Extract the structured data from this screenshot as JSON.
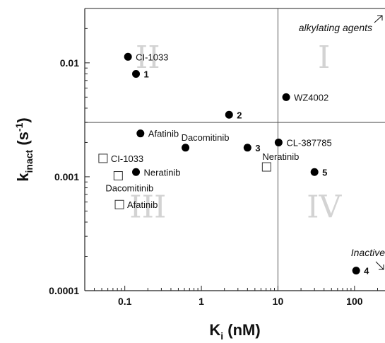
{
  "chart_data": {
    "type": "scatter",
    "xlabel": {
      "main": "K",
      "sub": "i",
      "rest": " (nM)"
    },
    "ylabel": {
      "main": "k",
      "sub": "inact",
      "rest": " (s",
      "sup": "-1",
      "close": ")"
    },
    "x_scale": "log",
    "y_scale": "log",
    "xlim": [
      0.03,
      250
    ],
    "ylim": [
      0.0001,
      0.03
    ],
    "x_ticks": [
      {
        "v": 0.1,
        "label": "0.1"
      },
      {
        "v": 1,
        "label": "1"
      },
      {
        "v": 10,
        "label": "10"
      },
      {
        "v": 100,
        "label": "100"
      }
    ],
    "y_ticks": [
      {
        "v": 0.0001,
        "label": "0.0001"
      },
      {
        "v": 0.001,
        "label": "0.001"
      },
      {
        "v": 0.01,
        "label": "0.01"
      }
    ],
    "divider_x": 10,
    "divider_y": 0.003,
    "quadrant_labels": [
      {
        "text": "I",
        "x": 40,
        "y": 0.009
      },
      {
        "text": "II",
        "x": 0.2,
        "y": 0.009
      },
      {
        "text": "III",
        "x": 0.2,
        "y": 0.00044
      },
      {
        "text": "IV",
        "x": 40,
        "y": 0.00044
      }
    ],
    "series": [
      {
        "marker": "filled-circle",
        "points": [
          {
            "x": 0.11,
            "y": 0.0113,
            "label": "CI-1033",
            "bold": false,
            "anchor": "right"
          },
          {
            "x": 0.14,
            "y": 0.008,
            "label": "1",
            "bold": true,
            "anchor": "right"
          },
          {
            "x": 12.8,
            "y": 0.005,
            "label": "WZ4002",
            "bold": false,
            "anchor": "right"
          },
          {
            "x": 2.3,
            "y": 0.0035,
            "label": "2",
            "bold": true,
            "anchor": "right"
          },
          {
            "x": 0.16,
            "y": 0.0024,
            "label": "Afatinib",
            "bold": false,
            "anchor": "right"
          },
          {
            "x": 0.62,
            "y": 0.0018,
            "label": "Dacomitinib",
            "bold": false,
            "anchor": "above-right"
          },
          {
            "x": 4.0,
            "y": 0.0018,
            "label": "3",
            "bold": true,
            "anchor": "right"
          },
          {
            "x": 10.2,
            "y": 0.002,
            "label": "CL-387785",
            "bold": false,
            "anchor": "right"
          },
          {
            "x": 0.14,
            "y": 0.0011,
            "label": "Neratinib",
            "bold": false,
            "anchor": "right"
          },
          {
            "x": 30,
            "y": 0.0011,
            "label": "5",
            "bold": true,
            "anchor": "right"
          },
          {
            "x": 105,
            "y": 0.00015,
            "label": "4",
            "bold": true,
            "anchor": "right"
          }
        ]
      },
      {
        "marker": "open-square",
        "points": [
          {
            "x": 0.052,
            "y": 0.00145,
            "label": "CI-1033",
            "anchor": "right"
          },
          {
            "x": 0.082,
            "y": 0.00102,
            "label": "Dacomitinib",
            "anchor": "below"
          },
          {
            "x": 0.085,
            "y": 0.00057,
            "label": "Afatinib",
            "anchor": "right"
          },
          {
            "x": 7.1,
            "y": 0.00122,
            "label": "Neratinib",
            "anchor": "above-right"
          }
        ]
      }
    ],
    "annotations": [
      {
        "text": "alkylating agents",
        "position": "top-right",
        "arrow": "up-right"
      },
      {
        "text": "Inactive",
        "position": "bottom-right",
        "arrow": "down-right"
      }
    ]
  }
}
